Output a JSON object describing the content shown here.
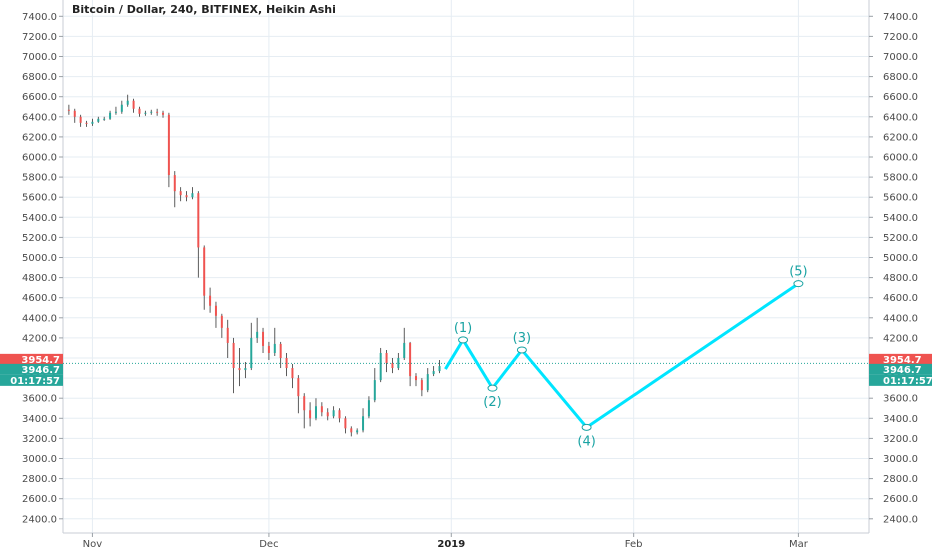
{
  "chart_data": {
    "type": "candlestick",
    "title": "Bitcoin / Dollar, 240, BITFINEX, Heikin Ashi",
    "y_axis": {
      "ylim": [
        2300,
        7500
      ],
      "ticks": [
        "7400.0",
        "7200.0",
        "7000.0",
        "6800.0",
        "6600.0",
        "6400.0",
        "6200.0",
        "6000.0",
        "5800.0",
        "5600.0",
        "5400.0",
        "5200.0",
        "5000.0",
        "4800.0",
        "4600.0",
        "4400.0",
        "4200.0",
        "4000.0",
        "3800.0",
        "3600.0",
        "3400.0",
        "3200.0",
        "3000.0",
        "2800.0",
        "2600.0",
        "2400.0"
      ],
      "tick_values": [
        7400,
        7200,
        7000,
        6800,
        6600,
        6400,
        6200,
        6000,
        5800,
        5600,
        5400,
        5200,
        5000,
        4800,
        4600,
        4400,
        4200,
        4000,
        3800,
        3600,
        3400,
        3200,
        3000,
        2800,
        2600,
        2400
      ],
      "sides": "both"
    },
    "x_axis": {
      "start": "2018-10-27",
      "end": "2019-03-13",
      "ticks": [
        {
          "label": "Nov",
          "date": "2018-11-01",
          "bold": false
        },
        {
          "label": "Dec",
          "date": "2018-12-01",
          "bold": false
        },
        {
          "label": "2019",
          "date": "2019-01-01",
          "bold": true
        },
        {
          "label": "Feb",
          "date": "2019-02-01",
          "bold": false
        },
        {
          "label": "Mar",
          "date": "2019-03-01",
          "bold": false
        }
      ]
    },
    "grid": true,
    "candles": [
      [
        "2018-10-28",
        6470,
        6460,
        6520,
        6420
      ],
      [
        "2018-10-29",
        6460,
        6400,
        6480,
        6340
      ],
      [
        "2018-10-30",
        6400,
        6340,
        6420,
        6300
      ],
      [
        "2018-10-31",
        6340,
        6330,
        6360,
        6300
      ],
      [
        "2018-11-01",
        6330,
        6350,
        6380,
        6310
      ],
      [
        "2018-11-02",
        6350,
        6380,
        6400,
        6340
      ],
      [
        "2018-11-03",
        6380,
        6380,
        6400,
        6360
      ],
      [
        "2018-11-04",
        6380,
        6440,
        6460,
        6370
      ],
      [
        "2018-11-05",
        6440,
        6450,
        6500,
        6420
      ],
      [
        "2018-11-06",
        6450,
        6520,
        6560,
        6430
      ],
      [
        "2018-11-07",
        6520,
        6560,
        6620,
        6500
      ],
      [
        "2018-11-08",
        6560,
        6480,
        6580,
        6440
      ],
      [
        "2018-11-09",
        6480,
        6430,
        6500,
        6400
      ],
      [
        "2018-11-10",
        6430,
        6440,
        6460,
        6410
      ],
      [
        "2018-11-11",
        6440,
        6450,
        6470,
        6420
      ],
      [
        "2018-11-12",
        6450,
        6440,
        6480,
        6410
      ],
      [
        "2018-11-13",
        6440,
        6420,
        6460,
        6390
      ],
      [
        "2018-11-14",
        6420,
        5820,
        6440,
        5700
      ],
      [
        "2018-11-15",
        5820,
        5660,
        5860,
        5500
      ],
      [
        "2018-11-16",
        5660,
        5620,
        5700,
        5560
      ],
      [
        "2018-11-17",
        5620,
        5600,
        5660,
        5560
      ],
      [
        "2018-11-18",
        5600,
        5640,
        5700,
        5580
      ],
      [
        "2018-11-19",
        5640,
        5100,
        5660,
        4800
      ],
      [
        "2018-11-20",
        5100,
        4620,
        5120,
        4480
      ],
      [
        "2018-11-21",
        4620,
        4520,
        4700,
        4450
      ],
      [
        "2018-11-22",
        4520,
        4420,
        4560,
        4300
      ],
      [
        "2018-11-23",
        4420,
        4300,
        4440,
        4200
      ],
      [
        "2018-11-24",
        4300,
        4150,
        4380,
        4000
      ],
      [
        "2018-11-25",
        4150,
        3900,
        4200,
        3650
      ],
      [
        "2018-11-26",
        3900,
        3880,
        4100,
        3720
      ],
      [
        "2018-11-27",
        3880,
        3900,
        3960,
        3800
      ],
      [
        "2018-11-28",
        3900,
        4200,
        4350,
        3880
      ],
      [
        "2018-11-29",
        4200,
        4260,
        4400,
        4150
      ],
      [
        "2018-11-30",
        4260,
        4120,
        4300,
        4050
      ],
      [
        "2018-12-01",
        4120,
        4050,
        4160,
        3980
      ],
      [
        "2018-12-02",
        4050,
        4140,
        4300,
        4020
      ],
      [
        "2018-12-03",
        4140,
        4000,
        4160,
        3900
      ],
      [
        "2018-12-04",
        4000,
        3900,
        4050,
        3820
      ],
      [
        "2018-12-05",
        3900,
        3800,
        3940,
        3700
      ],
      [
        "2018-12-06",
        3800,
        3620,
        3830,
        3450
      ],
      [
        "2018-12-07",
        3620,
        3480,
        3650,
        3300
      ],
      [
        "2018-12-08",
        3480,
        3400,
        3560,
        3320
      ],
      [
        "2018-12-09",
        3400,
        3520,
        3600,
        3380
      ],
      [
        "2018-12-10",
        3520,
        3460,
        3560,
        3420
      ],
      [
        "2018-12-11",
        3460,
        3420,
        3500,
        3380
      ],
      [
        "2018-12-12",
        3420,
        3480,
        3520,
        3400
      ],
      [
        "2018-12-13",
        3480,
        3400,
        3500,
        3360
      ],
      [
        "2018-12-14",
        3400,
        3300,
        3420,
        3250
      ],
      [
        "2018-12-15",
        3300,
        3260,
        3320,
        3220
      ],
      [
        "2018-12-16",
        3260,
        3280,
        3300,
        3240
      ],
      [
        "2018-12-17",
        3280,
        3420,
        3500,
        3260
      ],
      [
        "2018-12-18",
        3420,
        3580,
        3620,
        3400
      ],
      [
        "2018-12-19",
        3580,
        3780,
        3900,
        3560
      ],
      [
        "2018-12-20",
        3780,
        4050,
        4100,
        3760
      ],
      [
        "2018-12-21",
        4050,
        3950,
        4080,
        3860
      ],
      [
        "2018-12-22",
        3950,
        3900,
        4000,
        3850
      ],
      [
        "2018-12-23",
        3900,
        4000,
        4050,
        3880
      ],
      [
        "2018-12-24",
        4000,
        4150,
        4300,
        3980
      ],
      [
        "2018-12-25",
        4150,
        3820,
        4160,
        3720
      ],
      [
        "2018-12-26",
        3820,
        3780,
        3850,
        3720
      ],
      [
        "2018-12-27",
        3780,
        3680,
        3800,
        3620
      ],
      [
        "2018-12-28",
        3680,
        3840,
        3900,
        3660
      ],
      [
        "2018-12-29",
        3840,
        3870,
        3920,
        3820
      ],
      [
        "2018-12-30",
        3870,
        3920,
        3980,
        3850
      ]
    ],
    "wave": {
      "points": [
        {
          "label": "",
          "date": "2018-12-31",
          "value": 3890
        },
        {
          "label": "(1)",
          "date": "2019-01-03",
          "value": 4180
        },
        {
          "label": "(2)",
          "date": "2019-01-08",
          "value": 3700
        },
        {
          "label": "(3)",
          "date": "2019-01-13",
          "value": 4080
        },
        {
          "label": "(4)",
          "date": "2019-01-24",
          "value": 3310
        },
        {
          "label": "(5)",
          "date": "2019-03-01",
          "value": 4740
        }
      ],
      "label_position": [
        "none",
        "above",
        "below",
        "above",
        "below",
        "above"
      ]
    },
    "price_line": {
      "value": 3946.7,
      "labels": [
        {
          "text": "3954.7",
          "color": "#ef5350"
        },
        {
          "text": "3946.7",
          "color": "#26a69a"
        },
        {
          "text": "01:17:57",
          "color": "#26a69a"
        }
      ]
    }
  },
  "colors": {
    "up": "#26a69a",
    "down": "#ef5350",
    "wave": "#00e5ff",
    "wave_label": "#1aa3a3",
    "grid": "#e6edf3",
    "price_line": "#26a69a"
  }
}
